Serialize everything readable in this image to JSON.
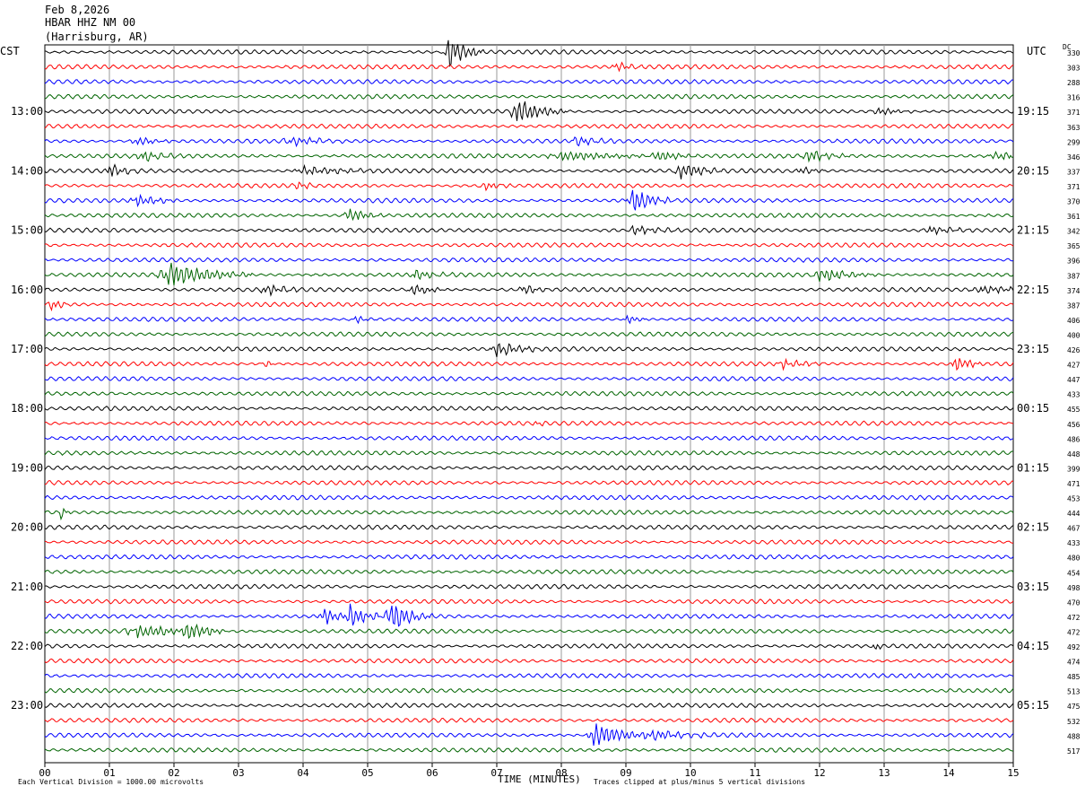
{
  "header": {
    "date": "Feb 8,2026",
    "station": "HBAR HHZ NM 00",
    "location": "(Harrisburg, AR)"
  },
  "axis_labels": {
    "left_tz": "CST",
    "right_tz": "UTC",
    "dc_label": "DC",
    "xlabel": "TIME (MINUTES)"
  },
  "footer": {
    "scale_note": "Each Vertical Division = 1000.00 microvolts",
    "clip_note": "Traces clipped at plus/minus 5 vertical divisions"
  },
  "colors": {
    "cycle": [
      "#000000",
      "#ff0000",
      "#0000ff",
      "#006400"
    ],
    "grid": "#999999"
  },
  "chart_data": {
    "type": "line",
    "title": "HBAR HHZ NM 00",
    "xlabel": "TIME (MINUTES)",
    "xlim": [
      0,
      15
    ],
    "x_ticks": [
      "00",
      "01",
      "02",
      "03",
      "04",
      "05",
      "06",
      "07",
      "08",
      "09",
      "10",
      "11",
      "12",
      "13",
      "14",
      "15"
    ],
    "left_ticks": [
      "13:00",
      "14:00",
      "15:00",
      "16:00",
      "17:00",
      "18:00",
      "19:00",
      "20:00",
      "21:00",
      "22:00",
      "23:00"
    ],
    "right_ticks": [
      "19:15",
      "20:15",
      "21:15",
      "22:15",
      "23:15",
      "00:15",
      "01:15",
      "02:15",
      "03:15",
      "04:15",
      "05:15"
    ],
    "dc_offsets": [
      330,
      303,
      288,
      316,
      371,
      363,
      299,
      346,
      337,
      371,
      370,
      361,
      342,
      365,
      396,
      387,
      374,
      387,
      406,
      400,
      426,
      427,
      447,
      433,
      455,
      456,
      486,
      448,
      399,
      471,
      453,
      444,
      467,
      433,
      480,
      454,
      498,
      470,
      472,
      472,
      492,
      474,
      485,
      513,
      475,
      532,
      488,
      517
    ],
    "events": [
      {
        "trace": 0,
        "minute": 6.25,
        "amp": 1.8,
        "dur": 0.25
      },
      {
        "trace": 1,
        "minute": 8.85,
        "amp": 0.5,
        "dur": 0.2
      },
      {
        "trace": 4,
        "minute": 7.3,
        "amp": 1.4,
        "dur": 0.35
      },
      {
        "trace": 4,
        "minute": 12.9,
        "amp": 0.4,
        "dur": 0.3
      },
      {
        "trace": 6,
        "minute": 1.4,
        "amp": 0.5,
        "dur": 0.3
      },
      {
        "trace": 6,
        "minute": 3.8,
        "amp": 0.45,
        "dur": 0.4
      },
      {
        "trace": 6,
        "minute": 8.2,
        "amp": 0.45,
        "dur": 0.3
      },
      {
        "trace": 7,
        "minute": 1.5,
        "amp": 0.5,
        "dur": 0.3
      },
      {
        "trace": 7,
        "minute": 8.0,
        "amp": 0.5,
        "dur": 0.8
      },
      {
        "trace": 7,
        "minute": 9.5,
        "amp": 0.6,
        "dur": 0.3
      },
      {
        "trace": 7,
        "minute": 11.8,
        "amp": 0.7,
        "dur": 0.3
      },
      {
        "trace": 7,
        "minute": 14.7,
        "amp": 0.5,
        "dur": 0.3
      },
      {
        "trace": 8,
        "minute": 1.0,
        "amp": 0.7,
        "dur": 0.2
      },
      {
        "trace": 8,
        "minute": 4.0,
        "amp": 0.5,
        "dur": 0.5
      },
      {
        "trace": 8,
        "minute": 9.85,
        "amp": 0.9,
        "dur": 0.3
      },
      {
        "trace": 8,
        "minute": 11.7,
        "amp": 0.4,
        "dur": 0.2
      },
      {
        "trace": 9,
        "minute": 3.9,
        "amp": 0.5,
        "dur": 0.15
      },
      {
        "trace": 9,
        "minute": 6.8,
        "amp": 0.5,
        "dur": 0.2
      },
      {
        "trace": 10,
        "minute": 1.4,
        "amp": 0.6,
        "dur": 0.3
      },
      {
        "trace": 10,
        "minute": 9.1,
        "amp": 1.3,
        "dur": 0.3
      },
      {
        "trace": 11,
        "minute": 4.7,
        "amp": 0.8,
        "dur": 0.25
      },
      {
        "trace": 12,
        "minute": 9.1,
        "amp": 0.4,
        "dur": 0.4
      },
      {
        "trace": 12,
        "minute": 13.7,
        "amp": 0.35,
        "dur": 0.4
      },
      {
        "trace": 15,
        "minute": 1.9,
        "amp": 1.3,
        "dur": 0.6
      },
      {
        "trace": 15,
        "minute": 5.7,
        "amp": 0.5,
        "dur": 0.3
      },
      {
        "trace": 15,
        "minute": 12.0,
        "amp": 0.7,
        "dur": 0.4
      },
      {
        "trace": 16,
        "minute": 3.4,
        "amp": 0.6,
        "dur": 0.25
      },
      {
        "trace": 16,
        "minute": 5.7,
        "amp": 0.7,
        "dur": 0.25
      },
      {
        "trace": 16,
        "minute": 7.4,
        "amp": 0.5,
        "dur": 0.2
      },
      {
        "trace": 16,
        "minute": 14.5,
        "amp": 0.4,
        "dur": 0.6
      },
      {
        "trace": 17,
        "minute": 0.1,
        "amp": 0.6,
        "dur": 0.15
      },
      {
        "trace": 18,
        "minute": 4.8,
        "amp": 0.4,
        "dur": 0.15
      },
      {
        "trace": 18,
        "minute": 9.0,
        "amp": 0.4,
        "dur": 0.2
      },
      {
        "trace": 20,
        "minute": 7.0,
        "amp": 0.8,
        "dur": 0.3
      },
      {
        "trace": 21,
        "minute": 11.4,
        "amp": 0.5,
        "dur": 0.3
      },
      {
        "trace": 21,
        "minute": 14.1,
        "amp": 1.0,
        "dur": 0.2
      },
      {
        "trace": 21,
        "minute": 3.4,
        "amp": 0.4,
        "dur": 0.1
      },
      {
        "trace": 25,
        "minute": 7.6,
        "amp": 0.4,
        "dur": 0.08
      },
      {
        "trace": 31,
        "minute": 0.25,
        "amp": 0.6,
        "dur": 0.08
      },
      {
        "trace": 38,
        "minute": 4.3,
        "amp": 1.0,
        "dur": 0.2
      },
      {
        "trace": 38,
        "minute": 4.7,
        "amp": 1.2,
        "dur": 0.25
      },
      {
        "trace": 38,
        "minute": 5.35,
        "amp": 1.5,
        "dur": 0.3
      },
      {
        "trace": 39,
        "minute": 1.4,
        "amp": 0.7,
        "dur": 0.6
      },
      {
        "trace": 39,
        "minute": 2.2,
        "amp": 0.8,
        "dur": 0.3
      },
      {
        "trace": 40,
        "minute": 12.85,
        "amp": 0.8,
        "dur": 0.05
      },
      {
        "trace": 46,
        "minute": 8.5,
        "amp": 1.3,
        "dur": 0.4
      },
      {
        "trace": 46,
        "minute": 9.4,
        "amp": 0.5,
        "dur": 0.5
      }
    ]
  }
}
